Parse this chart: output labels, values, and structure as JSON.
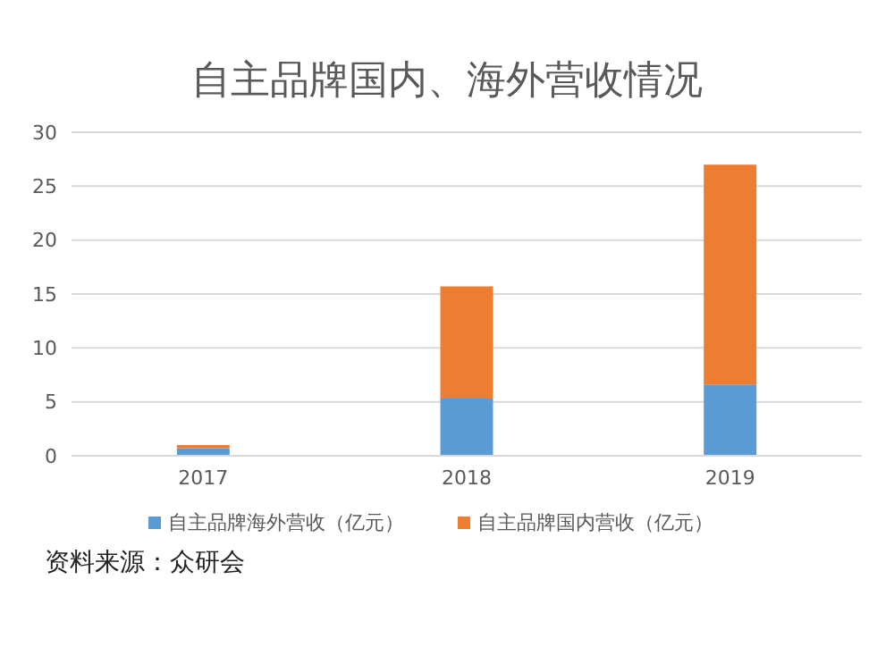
{
  "chart_data": {
    "type": "bar",
    "title": "自主品牌国内、海外营收情况",
    "categories": [
      "2017",
      "2018",
      "2019"
    ],
    "stacked": true,
    "series": [
      {
        "name": "自主品牌海外营收（亿元）",
        "color": "#5b9bd5",
        "values": [
          0.7,
          5.3,
          6.6
        ]
      },
      {
        "name": "自主品牌国内营收（亿元）",
        "color": "#ed7d31",
        "values": [
          0.3,
          10.4,
          20.4
        ]
      }
    ],
    "ylim": [
      0,
      30
    ],
    "yticks": [
      0,
      5,
      10,
      15,
      20,
      25,
      30
    ],
    "grid": "y",
    "legend": "bottom",
    "annotations": [
      "资料来源：众研会"
    ]
  }
}
